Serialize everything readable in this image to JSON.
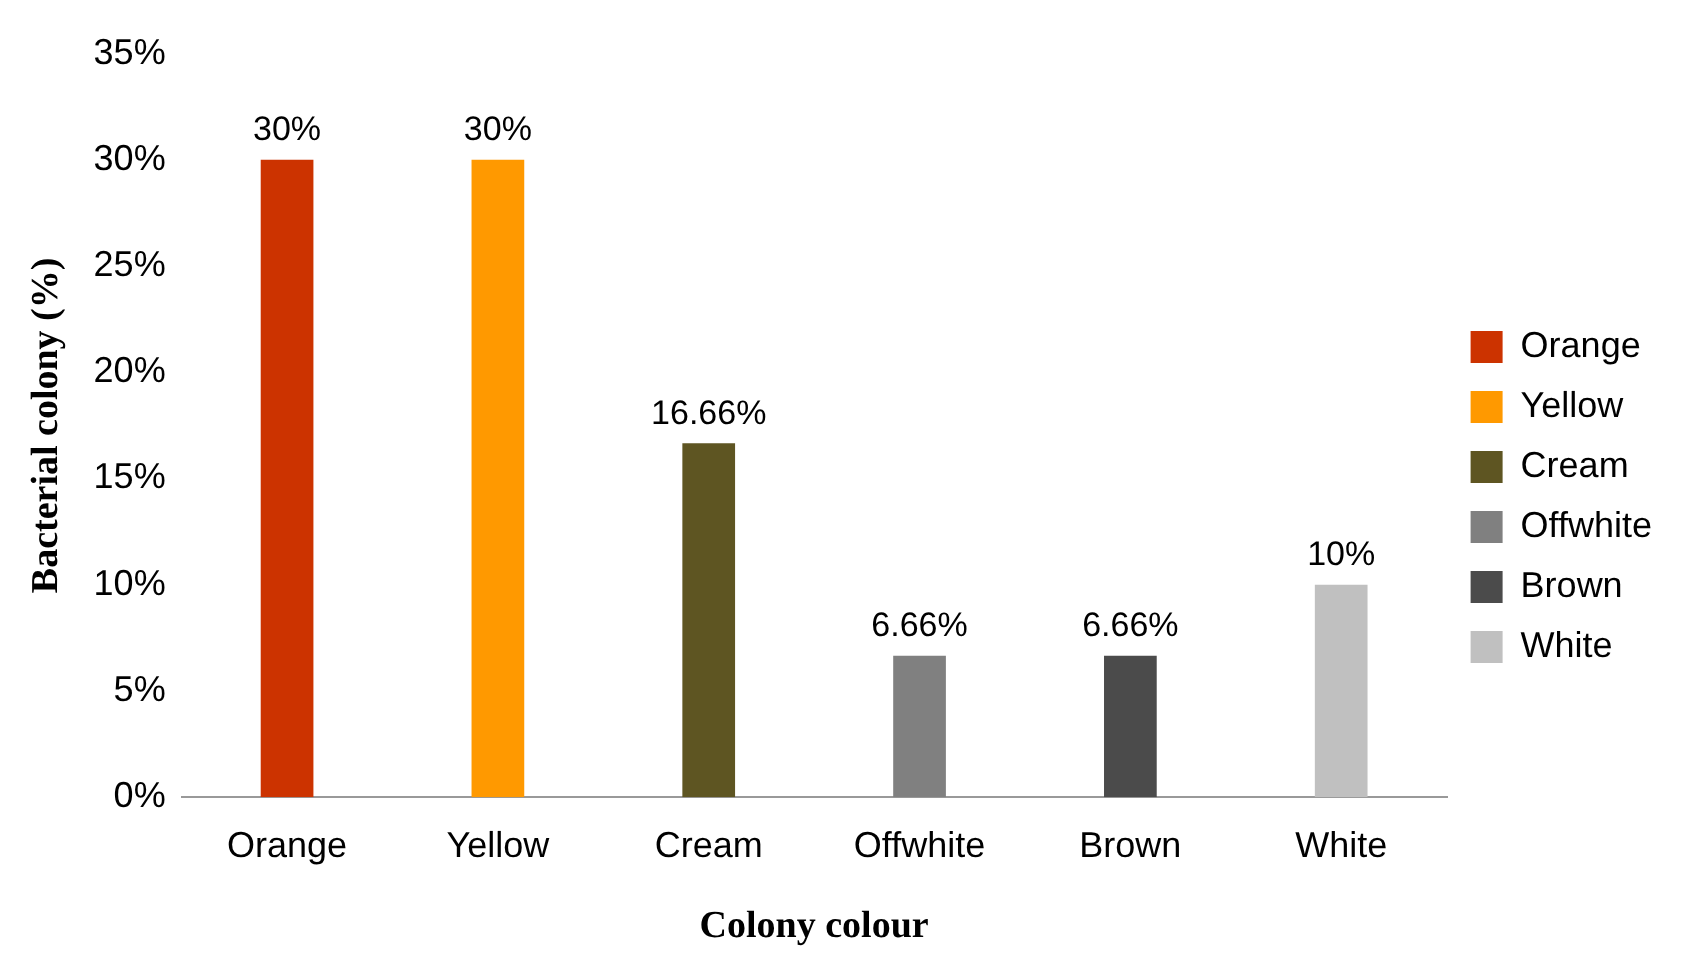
{
  "chart_data": {
    "type": "bar",
    "xlabel": "Colony colour",
    "ylabel": "Bacterial colony (%)",
    "categories": [
      "Orange",
      "Yellow",
      "Cream",
      "Offwhite",
      "Brown",
      "White"
    ],
    "series": [
      {
        "name": "Orange",
        "color": "#cc3300",
        "values": [
          30,
          null,
          null,
          null,
          null,
          null
        ],
        "value_labels": [
          "30%",
          null,
          null,
          null,
          null,
          null
        ]
      },
      {
        "name": "Yellow",
        "color": "#ff9900",
        "values": [
          null,
          30,
          null,
          null,
          null,
          null
        ],
        "value_labels": [
          null,
          "30%",
          null,
          null,
          null,
          null
        ]
      },
      {
        "name": "Cream",
        "color": "#5e5522",
        "values": [
          null,
          null,
          16.66,
          null,
          null,
          null
        ],
        "value_labels": [
          null,
          null,
          "16.66%",
          null,
          null,
          null
        ]
      },
      {
        "name": "Offwhite",
        "color": "#808080",
        "values": [
          null,
          null,
          null,
          6.66,
          null,
          null
        ],
        "value_labels": [
          null,
          null,
          null,
          "6.66%",
          null,
          null
        ]
      },
      {
        "name": "Brown",
        "color": "#4b4b4b",
        "values": [
          null,
          null,
          null,
          null,
          6.66,
          null
        ],
        "value_labels": [
          null,
          null,
          null,
          null,
          "6.66%",
          null
        ]
      },
      {
        "name": "White",
        "color": "#c0c0c0",
        "values": [
          null,
          null,
          null,
          null,
          null,
          10
        ],
        "value_labels": [
          null,
          null,
          null,
          null,
          null,
          "10%"
        ]
      }
    ],
    "ylim": [
      0,
      35
    ],
    "yticks": [
      {
        "value": 0,
        "label": "0%"
      },
      {
        "value": 5,
        "label": "5%"
      },
      {
        "value": 10,
        "label": "10%"
      },
      {
        "value": 15,
        "label": "15%"
      },
      {
        "value": 20,
        "label": "20%"
      },
      {
        "value": 25,
        "label": "25%"
      },
      {
        "value": 30,
        "label": "30%"
      },
      {
        "value": 35,
        "label": "35%"
      }
    ],
    "grid": false,
    "legend": "right"
  }
}
